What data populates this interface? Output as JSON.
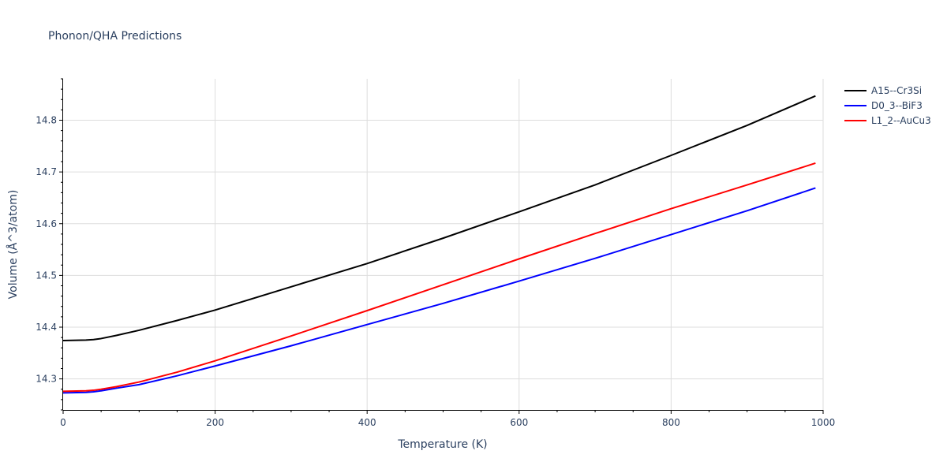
{
  "chart_data": {
    "type": "line",
    "title": "Phonon/QHA Predictions",
    "xlabel": "Temperature (K)",
    "ylabel": "Volume (Å^3/atom)",
    "xlim": [
      0,
      1000
    ],
    "ylim": [
      14.24,
      14.88
    ],
    "x_ticks": [
      0,
      200,
      400,
      600,
      800,
      1000
    ],
    "y_ticks": [
      14.3,
      14.4,
      14.5,
      14.6,
      14.7,
      14.8
    ],
    "x_tick_labels": [
      "0",
      "200",
      "400",
      "600",
      "800",
      "1000"
    ],
    "y_tick_labels": [
      "14.3",
      "14.4",
      "14.5",
      "14.6",
      "14.7",
      "14.8"
    ],
    "grid": true,
    "legend_position": "top-right",
    "series": [
      {
        "name": "A15--Cr3Si",
        "color": "#000000",
        "x": [
          0,
          30,
          40,
          50,
          70,
          100,
          150,
          200,
          300,
          400,
          500,
          600,
          700,
          800,
          900,
          990
        ],
        "y": [
          14.374,
          14.375,
          14.376,
          14.378,
          14.384,
          14.394,
          14.413,
          14.433,
          14.478,
          14.523,
          14.572,
          14.623,
          14.675,
          14.732,
          14.79,
          14.847
        ]
      },
      {
        "name": "D0_3--BiF3",
        "color": "#0000ff",
        "x": [
          0,
          30,
          40,
          50,
          70,
          100,
          150,
          200,
          300,
          400,
          500,
          600,
          700,
          800,
          900,
          990
        ],
        "y": [
          14.273,
          14.274,
          14.275,
          14.277,
          14.282,
          14.289,
          14.306,
          14.325,
          14.364,
          14.405,
          14.446,
          14.489,
          14.533,
          14.579,
          14.625,
          14.669
        ]
      },
      {
        "name": "L1_2--AuCu3",
        "color": "#ff0000",
        "x": [
          0,
          30,
          40,
          50,
          70,
          100,
          150,
          200,
          300,
          400,
          500,
          600,
          700,
          800,
          900,
          990
        ],
        "y": [
          14.276,
          14.277,
          14.278,
          14.28,
          14.285,
          14.294,
          14.313,
          14.335,
          14.383,
          14.432,
          14.482,
          14.532,
          14.581,
          14.629,
          14.675,
          14.717
        ]
      }
    ]
  }
}
